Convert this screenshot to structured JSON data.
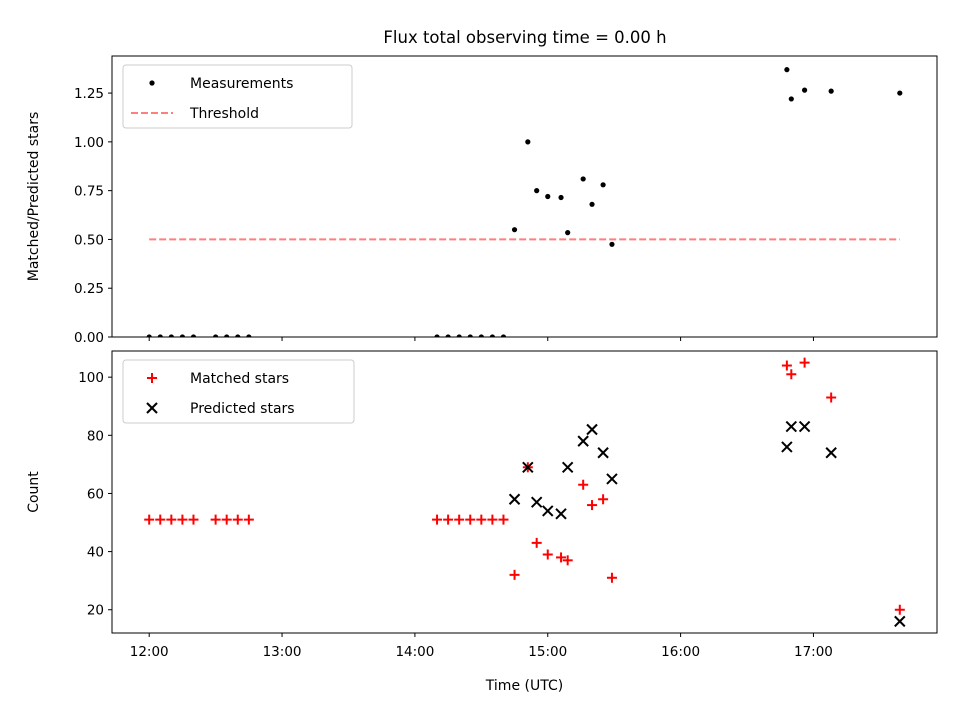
{
  "title": "Flux total observing time = 0.00 h",
  "chart_data": [
    {
      "type": "scatter",
      "ylabel": "Matched/Predicted stars",
      "xlabel": "",
      "xlim": [
        11.72,
        17.93
      ],
      "ylim": [
        0.0,
        1.44
      ],
      "yticks": [
        0.0,
        0.25,
        0.5,
        0.75,
        1.0,
        1.25
      ],
      "ytick_labels": [
        "0.00",
        "0.25",
        "0.50",
        "0.75",
        "1.00",
        "1.25"
      ],
      "legend_position": "top-left",
      "series": [
        {
          "name": "Measurements",
          "marker": "dot",
          "color": "#000000",
          "points": [
            [
              "12:00",
              0.0
            ],
            [
              "12:05",
              0.0
            ],
            [
              "12:10",
              0.0
            ],
            [
              "12:15",
              0.0
            ],
            [
              "12:20",
              0.0
            ],
            [
              "12:30",
              0.0
            ],
            [
              "12:35",
              0.0
            ],
            [
              "12:40",
              0.0
            ],
            [
              "12:45",
              0.0
            ],
            [
              "14:10",
              0.0
            ],
            [
              "14:15",
              0.0
            ],
            [
              "14:20",
              0.0
            ],
            [
              "14:25",
              0.0
            ],
            [
              "14:30",
              0.0
            ],
            [
              "14:35",
              0.0
            ],
            [
              "14:40",
              0.0
            ],
            [
              "14:45",
              0.55
            ],
            [
              "14:51",
              1.0
            ],
            [
              "14:55",
              0.75
            ],
            [
              "15:00",
              0.72
            ],
            [
              "15:06",
              0.715
            ],
            [
              "15:09",
              0.535
            ],
            [
              "15:16",
              0.81
            ],
            [
              "15:20",
              0.68
            ],
            [
              "15:25",
              0.78
            ],
            [
              "15:29",
              0.475
            ],
            [
              "16:48",
              1.37
            ],
            [
              "16:50",
              1.22
            ],
            [
              "16:56",
              1.265
            ],
            [
              "17:08",
              1.26
            ],
            [
              "17:39",
              1.25
            ]
          ]
        },
        {
          "name": "Threshold",
          "marker": "dashed-line",
          "color": "#ff7f7f",
          "value": 0.5,
          "x_range": [
            "12:00",
            "17:39"
          ]
        }
      ]
    },
    {
      "type": "scatter",
      "ylabel": "Count",
      "xlabel": "Time (UTC)",
      "xlim": [
        11.72,
        17.93
      ],
      "ylim": [
        12,
        109
      ],
      "yticks": [
        20,
        40,
        60,
        80,
        100
      ],
      "ytick_labels": [
        "20",
        "40",
        "60",
        "80",
        "100"
      ],
      "xticks": [
        "12:00",
        "13:00",
        "14:00",
        "15:00",
        "16:00",
        "17:00"
      ],
      "legend_position": "top-left",
      "series": [
        {
          "name": "Matched stars",
          "marker": "plus",
          "color": "#ff0000",
          "points": [
            [
              "12:00",
              51
            ],
            [
              "12:05",
              51
            ],
            [
              "12:10",
              51
            ],
            [
              "12:15",
              51
            ],
            [
              "12:20",
              51
            ],
            [
              "12:30",
              51
            ],
            [
              "12:35",
              51
            ],
            [
              "12:40",
              51
            ],
            [
              "12:45",
              51
            ],
            [
              "14:10",
              51
            ],
            [
              "14:15",
              51
            ],
            [
              "14:20",
              51
            ],
            [
              "14:25",
              51
            ],
            [
              "14:30",
              51
            ],
            [
              "14:35",
              51
            ],
            [
              "14:40",
              51
            ],
            [
              "14:45",
              32
            ],
            [
              "14:51",
              69
            ],
            [
              "14:55",
              43
            ],
            [
              "15:00",
              39
            ],
            [
              "15:06",
              38
            ],
            [
              "15:09",
              37
            ],
            [
              "15:16",
              63
            ],
            [
              "15:20",
              56
            ],
            [
              "15:25",
              58
            ],
            [
              "15:29",
              31
            ],
            [
              "16:48",
              104
            ],
            [
              "16:50",
              101
            ],
            [
              "16:56",
              105
            ],
            [
              "17:08",
              93
            ],
            [
              "17:39",
              20
            ]
          ]
        },
        {
          "name": "Predicted stars",
          "marker": "x",
          "color": "#000000",
          "points": [
            [
              "14:45",
              58
            ],
            [
              "14:51",
              69
            ],
            [
              "14:55",
              57
            ],
            [
              "15:00",
              54
            ],
            [
              "15:06",
              53
            ],
            [
              "15:09",
              69
            ],
            [
              "15:16",
              78
            ],
            [
              "15:20",
              82
            ],
            [
              "15:25",
              74
            ],
            [
              "15:29",
              65
            ],
            [
              "16:48",
              76
            ],
            [
              "16:50",
              83
            ],
            [
              "16:56",
              83
            ],
            [
              "17:08",
              74
            ],
            [
              "17:39",
              16
            ]
          ]
        }
      ]
    }
  ]
}
